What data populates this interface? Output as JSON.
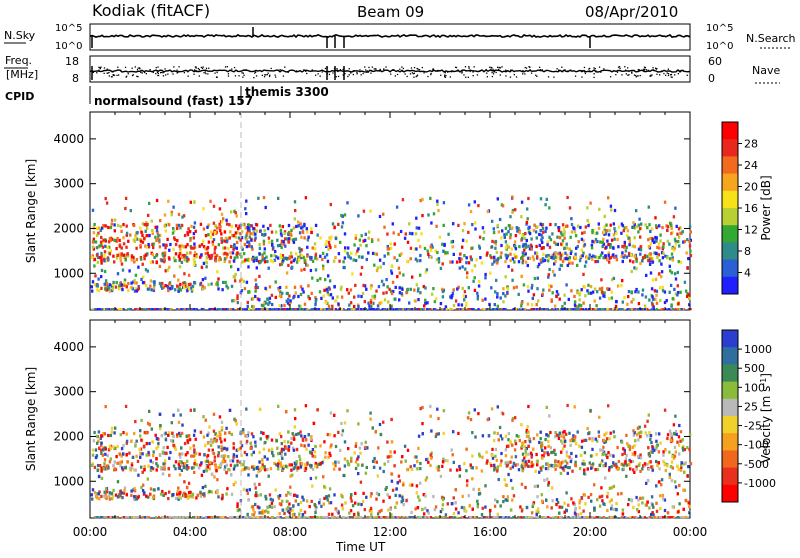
{
  "header": {
    "station": "Kodiak (fitACF)",
    "beam": "Beam 09",
    "date": "08/Apr/2010"
  },
  "noise_panel": {
    "left_label": "N.Sky",
    "left_ticks": [
      "10^5",
      "10^0"
    ],
    "right_ticks": [
      "10^5",
      "10^0"
    ],
    "right_label": "N.Search"
  },
  "freq_panel": {
    "left_label_top": "Freq.",
    "left_label_bottom": "[MHz]",
    "left_ticks": [
      "18",
      "8"
    ],
    "right_ticks": [
      "60",
      "0"
    ],
    "right_label": "Nave"
  },
  "cpid": {
    "label": "CPID",
    "mode1": "normalsound (fast) 157",
    "mode2": "themis 3300"
  },
  "chart_data": [
    {
      "type": "heatmap",
      "name": "power",
      "xlabel": "Time UT",
      "ylabel": "Slant Range [km]",
      "x_ticks": [
        "00:00",
        "04:00",
        "08:00",
        "12:00",
        "16:00",
        "20:00",
        "00:00"
      ],
      "y_ticks": [
        1000,
        2000,
        3000,
        4000
      ],
      "ylim": [
        180,
        4600
      ],
      "xlim_hours": [
        0,
        24
      ],
      "colorbar_label": "Power [dB]",
      "colorbar_ticks": [
        "4",
        "8",
        "12",
        "16",
        "20",
        "24",
        "28"
      ],
      "colors": [
        "#1f1fff",
        "#2a5fd6",
        "#2f8a8a",
        "#33a833",
        "#b9d033",
        "#f7e21a",
        "#f7a51e",
        "#f26a1e",
        "#e8281d",
        "#ff0000"
      ],
      "grid": false
    },
    {
      "type": "heatmap",
      "name": "velocity",
      "xlabel": "Time UT",
      "ylabel": "Slant Range [km]",
      "x_ticks": [
        "00:00",
        "04:00",
        "08:00",
        "12:00",
        "16:00",
        "20:00",
        "00:00"
      ],
      "y_ticks": [
        1000,
        2000,
        3000,
        4000
      ],
      "ylim": [
        180,
        4600
      ],
      "xlim_hours": [
        0,
        24
      ],
      "colorbar_label": "Velocity [m s",
      "colorbar_label_sup": "-1",
      "colorbar_label_end": "]",
      "colorbar_ticks": [
        "1000",
        "500",
        "100",
        "25",
        "-25",
        "-100",
        "-500",
        "-1000"
      ],
      "colors": [
        "#2a3fd0",
        "#2f6fa0",
        "#3b8a55",
        "#8bbb3a",
        "#b9b9b9",
        "#f0d02a",
        "#f5a01e",
        "#f0681e",
        "#e8301d",
        "#ff0000"
      ],
      "grid": false
    }
  ]
}
